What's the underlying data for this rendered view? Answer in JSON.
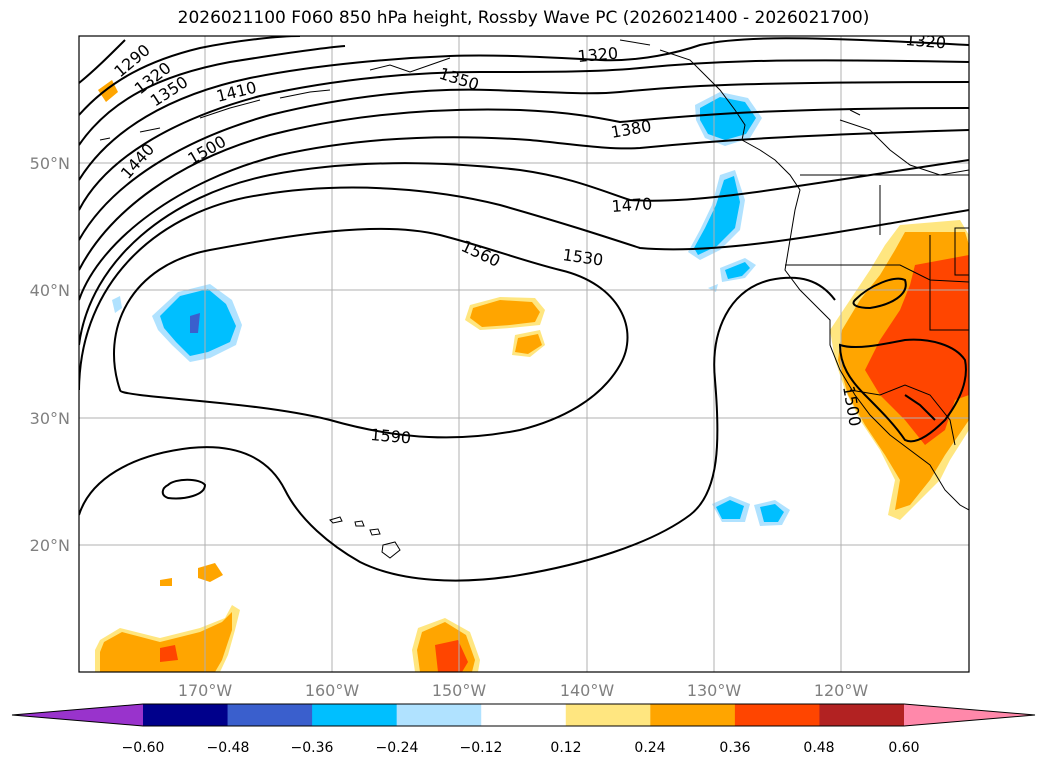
{
  "title": "2026021100 F060 850 hPa height, Rossby Wave PC (2026021400 - 2026021700)",
  "latitude_labels": [
    "50°N",
    "40°N",
    "30°N",
    "20°N"
  ],
  "longitude_labels": [
    "170°W",
    "160°W",
    "150°W",
    "140°W",
    "130°W",
    "120°W"
  ],
  "contour_labels": [
    "1290",
    "1320",
    "1350",
    "1410",
    "1440",
    "1500",
    "1350",
    "1320",
    "1380",
    "1470",
    "1560",
    "1530",
    "1590",
    "1320",
    "1500"
  ],
  "colorbar": {
    "ticks": [
      "−0.60",
      "−0.48",
      "−0.36",
      "−0.24",
      "−0.12",
      "0.12",
      "0.24",
      "0.36",
      "0.48",
      "0.60"
    ],
    "colors": [
      "#9933cc",
      "#00008b",
      "#3a5fcd",
      "#00bfff",
      "#b0e2ff",
      "#ffffff",
      "#ffe680",
      "#ffa500",
      "#ff4500",
      "#b22222",
      "#ff88aa"
    ]
  },
  "colors": {
    "contour": "#000000",
    "grid": "#b0b0b0",
    "pos_light": "#ffe680",
    "pos_mid": "#ffa500",
    "pos_strong": "#ff4500",
    "neg_light": "#b0e2ff",
    "neg_mid": "#00bfff",
    "neg_strong": "#3a5fcd"
  }
}
